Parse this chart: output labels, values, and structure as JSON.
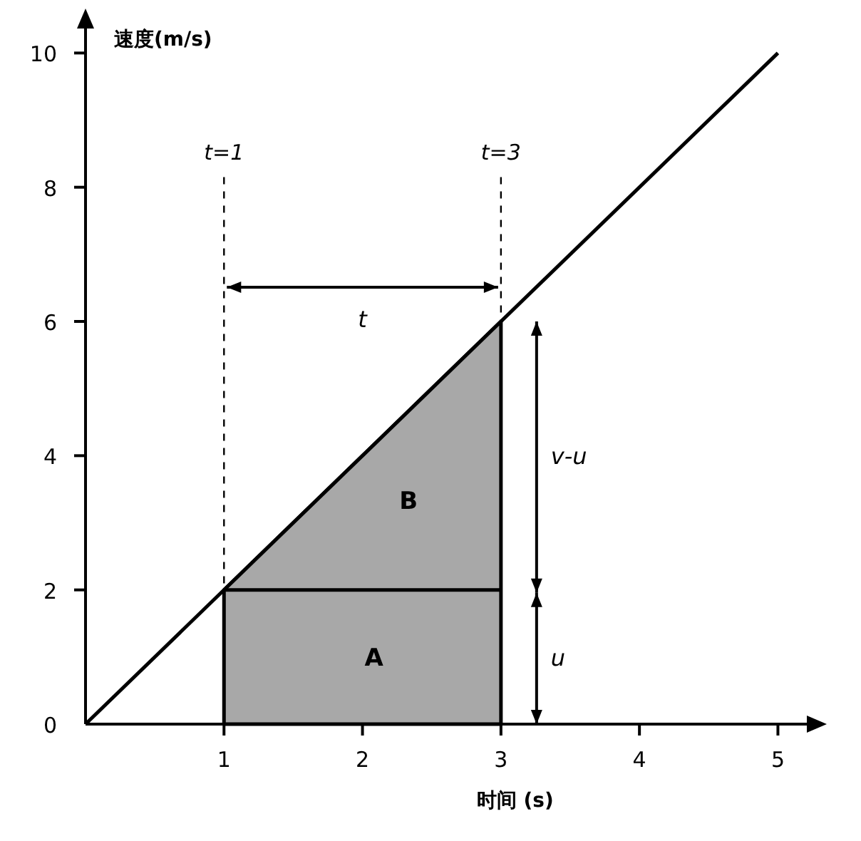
{
  "chart_data": {
    "type": "line",
    "xlabel": "时间 (s)",
    "ylabel": "速度(m/s)",
    "xlim": [
      0,
      5.25
    ],
    "ylim": [
      0,
      10.45
    ],
    "xticks": [
      1,
      2,
      3,
      4,
      5
    ],
    "yticks": [
      0,
      2,
      4,
      6,
      8,
      10
    ],
    "grid": false,
    "legend": false,
    "series": [
      {
        "type": "line",
        "x": [
          0,
          5
        ],
        "values": [
          0,
          10
        ],
        "color": "#000000"
      },
      {
        "type": "area",
        "x": [
          1,
          3
        ],
        "values": [
          2,
          6
        ],
        "color": "#a8a8a8"
      },
      {
        "type": "line",
        "x": [
          1,
          3
        ],
        "values": [
          2,
          2
        ],
        "color": "#000000"
      }
    ],
    "ref_lines": [
      {
        "axis": "x",
        "value": 1,
        "label": "t=1",
        "line_style": "dashed"
      },
      {
        "axis": "x",
        "value": 3,
        "label": "t=3",
        "line_style": "dashed"
      }
    ],
    "annotations": [
      "t",
      "v-u",
      "u",
      "A",
      "B"
    ]
  }
}
